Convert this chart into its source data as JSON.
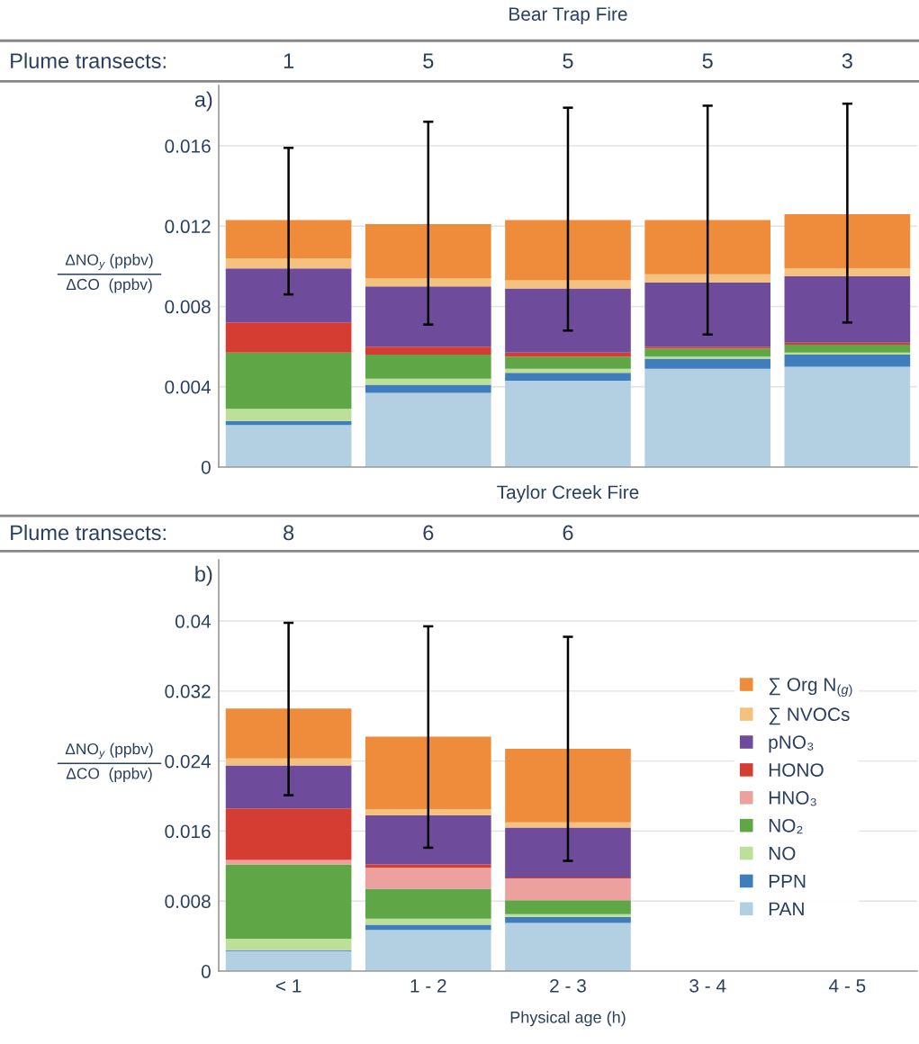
{
  "chart_data": [
    {
      "type": "bar",
      "title": "Bear Trap Fire",
      "ylabel": "ΔNO$_{y}$ (ppbv)\nΔCO  (ppbv)",
      "stacked": true,
      "grid": "y",
      "legend": false,
      "tick_labels": "y",
      "categories": [
        null,
        null,
        null,
        null,
        null
      ],
      "ylim": [
        0,
        0.019
      ],
      "yticks": [
        0,
        0.004,
        0.008,
        0.012,
        0.016
      ],
      "annotations": [
        "a)",
        "Plume transects:",
        "1",
        "5",
        "5",
        "5",
        "3"
      ],
      "series": [
        {
          "color": "#b3cfe2",
          "values": [
            0.0021,
            0.0037,
            0.0043,
            0.0049,
            0.005
          ]
        },
        {
          "color": "#3f7dbd",
          "values": [
            0.0002,
            0.0004,
            0.0004,
            0.0005,
            0.0006
          ]
        },
        {
          "color": "#bcdf99",
          "values": [
            0.0006,
            0.0003,
            0.0002,
            0.0001,
            0.0001
          ]
        },
        {
          "color": "#5ea646",
          "values": [
            0.0028,
            0.0012,
            0.0006,
            0.0004,
            0.0004
          ]
        },
        {
          "color": "#eda19e",
          "values": [
            0,
            0,
            0,
            0,
            0
          ]
        },
        {
          "color": "#d53d33",
          "values": [
            0.0015,
            0.0004,
            0.0002,
            0.0001,
            0.0001
          ]
        },
        {
          "color": "#6f4b9c",
          "values": [
            0.0027,
            0.003,
            0.0032,
            0.0032,
            0.0033
          ]
        },
        {
          "color": "#f4c17f",
          "values": [
            0.0005,
            0.0004,
            0.0004,
            0.0004,
            0.0004
          ]
        },
        {
          "color": "#ef8c3c",
          "values": [
            0.0019,
            0.0027,
            0.003,
            0.0027,
            0.0027
          ],
          "errors": [
            [
              0.0086,
              0.0159
            ],
            [
              0.0071,
              0.0172
            ],
            [
              0.0068,
              0.0179
            ],
            [
              0.0066,
              0.018
            ],
            [
              0.0072,
              0.0181
            ]
          ]
        }
      ]
    },
    {
      "type": "bar",
      "title": "Taylor Creek Fire",
      "ylabel": "ΔNO$_{y}$ (ppbv)\nΔCO  (ppbv)",
      "xlabel": "Physical age (h)",
      "stacked": true,
      "grid": "y",
      "legend": "right",
      "categories": [
        "< 1",
        "1 - 2",
        "2 - 3",
        "3 - 4",
        "4 - 5"
      ],
      "ylim": [
        0,
        0.047
      ],
      "yticks": [
        0,
        0.008,
        0.016,
        0.024,
        0.032,
        0.04
      ],
      "annotations": [
        "b)",
        "Plume transects:",
        "8",
        "6",
        "6"
      ],
      "series": [
        {
          "name": "PAN",
          "color": "#b3cfe2",
          "values": [
            0.0023,
            0.0047,
            0.0055,
            null,
            null
          ]
        },
        {
          "name": "PPN",
          "color": "#3f7dbd",
          "values": [
            0.0001,
            0.0006,
            0.0007,
            null,
            null
          ]
        },
        {
          "name": "NO",
          "color": "#bcdf99",
          "values": [
            0.0013,
            0.0007,
            0.0003,
            null,
            null
          ]
        },
        {
          "name": "NO₂",
          "color": "#5ea646",
          "values": [
            0.0085,
            0.0034,
            0.0016,
            null,
            null
          ]
        },
        {
          "name": "HNO₃",
          "color": "#eda19e",
          "values": [
            0.0005,
            0.0024,
            0.0025,
            null,
            null
          ]
        },
        {
          "name": "HONO",
          "color": "#d53d33",
          "values": [
            0.0059,
            0.0004,
            0.0001,
            null,
            null
          ]
        },
        {
          "name": "pNO₃",
          "color": "#6f4b9c",
          "values": [
            0.0049,
            0.0056,
            0.0057,
            null,
            null
          ]
        },
        {
          "name": "∑ NVOCs",
          "color": "#f4c17f",
          "values": [
            0.0008,
            0.0007,
            0.0006,
            null,
            null
          ]
        },
        {
          "name": "∑ Org N$_{(g)}$",
          "color": "#ef8c3c",
          "values": [
            0.0057,
            0.0083,
            0.0084,
            null,
            null
          ],
          "errors": [
            [
              0.0201,
              0.0398
            ],
            [
              0.0141,
              0.0394
            ],
            [
              0.0126,
              0.0382
            ],
            null,
            null
          ]
        }
      ]
    }
  ]
}
